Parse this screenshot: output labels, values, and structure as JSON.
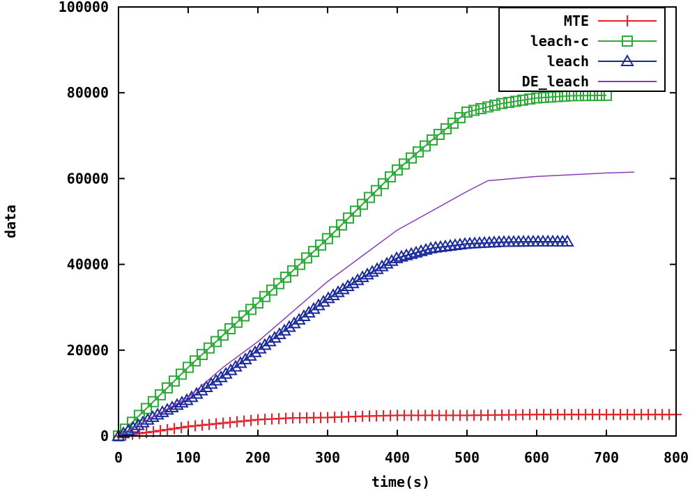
{
  "chart_data": {
    "type": "line",
    "title": "",
    "xlabel": "time(s)",
    "ylabel": "data",
    "xlim": [
      0,
      800
    ],
    "ylim": [
      0,
      100000
    ],
    "xticks": [
      "0",
      "100",
      "200",
      "300",
      "400",
      "500",
      "600",
      "700",
      "800"
    ],
    "yticks": [
      "0",
      "20000",
      "40000",
      "60000",
      "80000",
      "100000"
    ],
    "grid": false,
    "legend_position": "top-right",
    "series": [
      {
        "name": "MTE",
        "color": "#e8202a",
        "marker": "plus",
        "x": [
          0,
          50,
          100,
          150,
          200,
          250,
          300,
          350,
          400,
          500,
          600,
          700,
          800
        ],
        "y": [
          0,
          1000,
          2200,
          3000,
          3800,
          4200,
          4300,
          4600,
          4800,
          4800,
          5000,
          5000,
          5000
        ]
      },
      {
        "name": "leach-c",
        "color": "#2eaa3a",
        "marker": "square",
        "x": [
          0,
          50,
          100,
          150,
          200,
          250,
          300,
          350,
          400,
          450,
          500,
          525,
          550,
          600,
          650,
          700
        ],
        "y": [
          0,
          8000,
          16000,
          23500,
          31000,
          38500,
          46000,
          54000,
          62000,
          69000,
          75500,
          76500,
          77500,
          78800,
          79300,
          79400
        ]
      },
      {
        "name": "leach",
        "color": "#1a2a9a",
        "marker": "triangle",
        "x": [
          0,
          50,
          100,
          150,
          200,
          250,
          300,
          350,
          400,
          450,
          500,
          550,
          600,
          645
        ],
        "y": [
          0,
          4500,
          8500,
          14000,
          20000,
          26000,
          32000,
          37000,
          41500,
          43800,
          44800,
          45200,
          45300,
          45300
        ]
      },
      {
        "name": "DE_leach",
        "color": "#8a3ab8",
        "marker": "none",
        "x": [
          0,
          50,
          100,
          150,
          200,
          250,
          300,
          350,
          400,
          450,
          500,
          530,
          600,
          700,
          740
        ],
        "y": [
          0,
          4500,
          9000,
          16000,
          22000,
          29000,
          36000,
          42000,
          48000,
          52500,
          57000,
          59500,
          60500,
          61300,
          61500
        ]
      }
    ]
  }
}
